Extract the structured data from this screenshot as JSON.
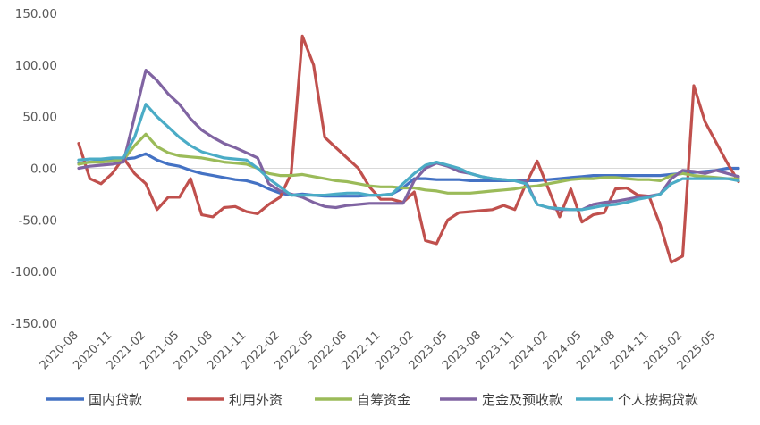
{
  "chart_data": {
    "type": "line",
    "title": "",
    "xlabel": "",
    "ylabel": "",
    "ylim": [
      -150,
      150
    ],
    "y_ticks": [
      150,
      100,
      50,
      0,
      -50,
      -100,
      -150
    ],
    "y_tick_labels": [
      "150.00",
      "100.00",
      "50.00",
      "0.00",
      "-50.00",
      "-100.00",
      "-150.00"
    ],
    "x_tick_labels": [
      "2020-08",
      "2020-11",
      "2021-02",
      "2021-05",
      "2021-08",
      "2021-11",
      "2022-02",
      "2022-05",
      "2022-08",
      "2022-11",
      "2023-02",
      "2023-05",
      "2023-08",
      "2023-11",
      "2024-02",
      "2024-05",
      "2024-08",
      "2024-11",
      "2025-02",
      "2025-05"
    ],
    "x": [
      "2020-08",
      "2020-09",
      "2020-10",
      "2020-11",
      "2020-12",
      "2021-01",
      "2021-02",
      "2021-03",
      "2021-04",
      "2021-05",
      "2021-06",
      "2021-07",
      "2021-08",
      "2021-09",
      "2021-10",
      "2021-11",
      "2021-12",
      "2022-01",
      "2022-02",
      "2022-03",
      "2022-04",
      "2022-05",
      "2022-06",
      "2022-07",
      "2022-08",
      "2022-09",
      "2022-10",
      "2022-11",
      "2022-12",
      "2023-01",
      "2023-02",
      "2023-03",
      "2023-04",
      "2023-05",
      "2023-06",
      "2023-07",
      "2023-08",
      "2023-09",
      "2023-10",
      "2023-11",
      "2023-12",
      "2024-01",
      "2024-02",
      "2024-03",
      "2024-04",
      "2024-05",
      "2024-06",
      "2024-07",
      "2024-08",
      "2024-09",
      "2024-10",
      "2024-11",
      "2024-12",
      "2025-01",
      "2025-02",
      "2025-03",
      "2025-04",
      "2025-05",
      "2025-06",
      "2025-07"
    ],
    "grid": false,
    "legend_position": "bottom",
    "series": [
      {
        "name": "国内贷款",
        "color": "#4472C4",
        "values": [
          5,
          6,
          7,
          8,
          9,
          10,
          14,
          8,
          4,
          2,
          -2,
          -5,
          -7,
          -9,
          -11,
          -12,
          -15,
          -20,
          -24,
          -26,
          -25,
          -26,
          -27,
          -27,
          -27,
          -27,
          -26,
          -26,
          -25,
          -19,
          -10,
          -10,
          -11,
          -11,
          -11,
          -12,
          -12,
          -12,
          -12,
          -12,
          -12,
          -12,
          -11,
          -10,
          -9,
          -8,
          -7,
          -7,
          -7,
          -7,
          -7,
          -7,
          -7,
          -6,
          -5,
          -4,
          -3,
          -2,
          0,
          0
        ]
      },
      {
        "name": "利用外资",
        "color": "#C0504D",
        "values": [
          24,
          -10,
          -15,
          -5,
          10,
          -5,
          -15,
          -40,
          -28,
          -28,
          -10,
          -45,
          -47,
          -38,
          -37,
          -42,
          -44,
          -35,
          -28,
          -5,
          128,
          100,
          30,
          20,
          10,
          0,
          -18,
          -30,
          -30,
          -33,
          -23,
          -70,
          -73,
          -50,
          -43,
          -42,
          -41,
          -40,
          -36,
          -40,
          -15,
          7,
          -20,
          -47,
          -20,
          -52,
          -45,
          -43,
          -20,
          -19,
          -26,
          -27,
          -55,
          -91,
          -85,
          80,
          45,
          25,
          5,
          -13
        ]
      },
      {
        "name": "自筹资金",
        "color": "#9BBB59",
        "values": [
          4,
          6,
          6,
          7,
          8,
          22,
          33,
          21,
          15,
          12,
          11,
          10,
          8,
          6,
          5,
          4,
          0,
          -5,
          -7,
          -7,
          -6,
          -8,
          -10,
          -12,
          -13,
          -15,
          -17,
          -18,
          -18,
          -19,
          -19,
          -21,
          -22,
          -24,
          -24,
          -24,
          -23,
          -22,
          -21,
          -20,
          -18,
          -17,
          -15,
          -13,
          -11,
          -10,
          -10,
          -9,
          -9,
          -10,
          -11,
          -11,
          -12,
          -7,
          -5,
          -7,
          -8,
          -9,
          -10,
          -10
        ]
      },
      {
        "name": "定金及预收款",
        "color": "#8064A2",
        "values": [
          0,
          2,
          3,
          4,
          6,
          50,
          95,
          85,
          72,
          62,
          48,
          37,
          30,
          24,
          20,
          15,
          10,
          -15,
          -22,
          -25,
          -28,
          -33,
          -37,
          -38,
          -36,
          -35,
          -34,
          -34,
          -34,
          -34,
          -12,
          0,
          5,
          2,
          -3,
          -5,
          -8,
          -10,
          -11,
          -12,
          -13,
          -35,
          -38,
          -40,
          -40,
          -40,
          -35,
          -33,
          -32,
          -30,
          -28,
          -27,
          -25,
          -10,
          -2,
          -3,
          -5,
          -2,
          -5,
          -8
        ]
      },
      {
        "name": "个人按揭贷款",
        "color": "#4BACC6",
        "values": [
          8,
          9,
          9,
          10,
          10,
          30,
          62,
          50,
          40,
          30,
          22,
          16,
          13,
          10,
          9,
          8,
          0,
          -10,
          -18,
          -26,
          -26,
          -26,
          -26,
          -25,
          -24,
          -24,
          -26,
          -26,
          -25,
          -15,
          -5,
          3,
          6,
          3,
          0,
          -5,
          -8,
          -10,
          -11,
          -12,
          -15,
          -35,
          -38,
          -39,
          -40,
          -40,
          -38,
          -36,
          -35,
          -33,
          -30,
          -28,
          -25,
          -15,
          -10,
          -10,
          -10,
          -10,
          -10,
          -12
        ]
      }
    ]
  }
}
